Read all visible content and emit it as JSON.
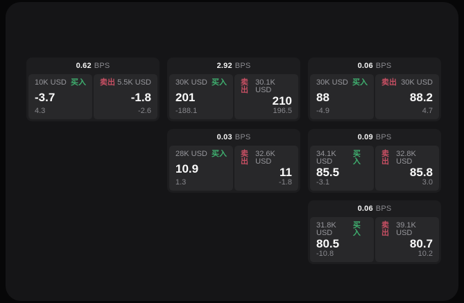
{
  "labels": {
    "bps_unit": "BPS",
    "buy": "买入",
    "sell": "卖出"
  },
  "colors": {
    "background": "#070708",
    "panel": "#151517",
    "card": "#1d1d1f",
    "tile": "#28282a",
    "buy_accent": "#3faf6f",
    "sell_accent": "#c64f63",
    "text_bright": "#f5f5f5",
    "text_muted": "#8b8b90"
  },
  "cards": [
    {
      "bps": "0.62",
      "buy_size": "10K USD",
      "buy_value": "-3.7",
      "buy_change": "4.3",
      "sell_size": "5.5K USD",
      "sell_value": "-1.8",
      "sell_change": "-2.6"
    },
    {
      "bps": "2.92",
      "buy_size": "30K USD",
      "buy_value": "201",
      "buy_change": "-188.1",
      "sell_size": "30.1K USD",
      "sell_value": "210",
      "sell_change": "196.5"
    },
    {
      "bps": "0.06",
      "buy_size": "30K USD",
      "buy_value": "88",
      "buy_change": "-4.9",
      "sell_size": "30K USD",
      "sell_value": "88.2",
      "sell_change": "4.7"
    },
    {
      "bps": "0.03",
      "buy_size": "28K USD",
      "buy_value": "10.9",
      "buy_change": "1.3",
      "sell_size": "32.6K USD",
      "sell_value": "11",
      "sell_change": "-1.8"
    },
    {
      "bps": "0.09",
      "buy_size": "34.1K USD",
      "buy_value": "85.5",
      "buy_change": "-3.1",
      "sell_size": "32.8K USD",
      "sell_value": "85.8",
      "sell_change": "3.0"
    },
    {
      "bps": "0.06",
      "buy_size": "31.8K USD",
      "buy_value": "80.5",
      "buy_change": "-10.8",
      "sell_size": "39.1K USD",
      "sell_value": "80.7",
      "sell_change": "10.2"
    }
  ]
}
